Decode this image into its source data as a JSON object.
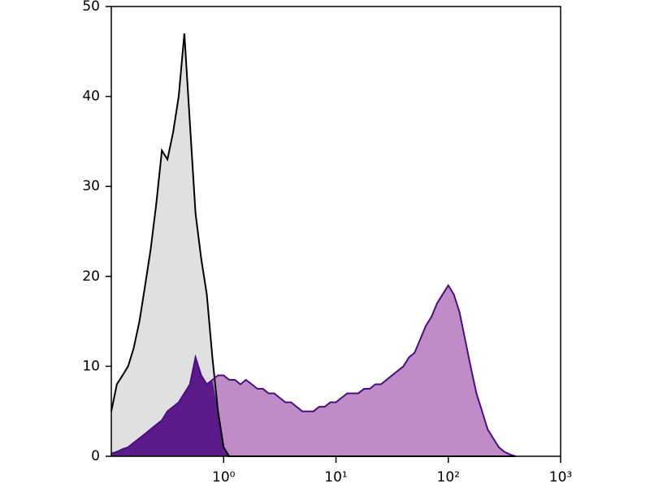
{
  "chart_data": {
    "type": "histogram-overlay",
    "x": [
      0.1,
      0.112,
      0.126,
      0.141,
      0.158,
      0.178,
      0.2,
      0.224,
      0.251,
      0.282,
      0.316,
      0.355,
      0.398,
      0.447,
      0.501,
      0.562,
      0.631,
      0.708,
      0.794,
      0.891,
      1,
      1.12,
      1.26,
      1.41,
      1.58,
      1.78,
      2,
      2.24,
      2.51,
      2.82,
      3.16,
      3.55,
      3.98,
      4.47,
      5.01,
      5.62,
      6.31,
      7.08,
      7.94,
      8.91,
      10,
      11.2,
      12.6,
      14.1,
      15.8,
      17.8,
      20,
      22.4,
      25.1,
      28.2,
      31.6,
      35.5,
      39.8,
      44.7,
      50.1,
      56.2,
      63.1,
      70.8,
      79.4,
      89.1,
      100,
      112,
      126,
      141,
      158,
      178,
      200,
      224,
      251,
      282,
      316,
      355,
      398
    ],
    "series": [
      {
        "color": "#000000",
        "fill": "#e0e0e0",
        "values": [
          5,
          8,
          9,
          10,
          12,
          15,
          19,
          23,
          28,
          34,
          33,
          36,
          40,
          47,
          37,
          27,
          22,
          18,
          11,
          5,
          1,
          0,
          0,
          0,
          0,
          0,
          0,
          0,
          0,
          0,
          0,
          0,
          0,
          0,
          0,
          0,
          0,
          0,
          0,
          0,
          0,
          0,
          0,
          0,
          0,
          0,
          0,
          0,
          0,
          0,
          0,
          0,
          0,
          0,
          0,
          0,
          0,
          0,
          0,
          0,
          0,
          0,
          0,
          0,
          0,
          0,
          0,
          0,
          0,
          0,
          0,
          0,
          0
        ]
      },
      {
        "color": "#4b0f82",
        "fill": "#c08cc8",
        "values": [
          0.3,
          0.5,
          0.8,
          1,
          1.5,
          2,
          2.5,
          3,
          3.5,
          4,
          5,
          5.5,
          6,
          7,
          8,
          11,
          9,
          8,
          8.5,
          9,
          9,
          8.5,
          8.5,
          8,
          8.5,
          8,
          7.5,
          7.5,
          7,
          7,
          6.5,
          6,
          6,
          5.5,
          5,
          5,
          5,
          5.5,
          5.5,
          6,
          6,
          6.5,
          7,
          7,
          7,
          7.5,
          7.5,
          8,
          8,
          8.5,
          9,
          9.5,
          10,
          11,
          11.5,
          13,
          14.5,
          15.5,
          17,
          18,
          19,
          18,
          16,
          13,
          10,
          7,
          5,
          3,
          2,
          1,
          0.5,
          0.2,
          0
        ]
      }
    ],
    "overlap_color": "#5c1a8a",
    "xscale": "log",
    "xlim": [
      0.1,
      1000
    ],
    "xticks": [
      {
        "value": 1,
        "label": "10⁰"
      },
      {
        "value": 10,
        "label": "10¹"
      },
      {
        "value": 100,
        "label": "10²"
      },
      {
        "value": 1000,
        "label": "10³"
      }
    ],
    "ylim": [
      0,
      50
    ],
    "yticks": [
      0,
      10,
      20,
      30,
      40,
      50
    ]
  }
}
